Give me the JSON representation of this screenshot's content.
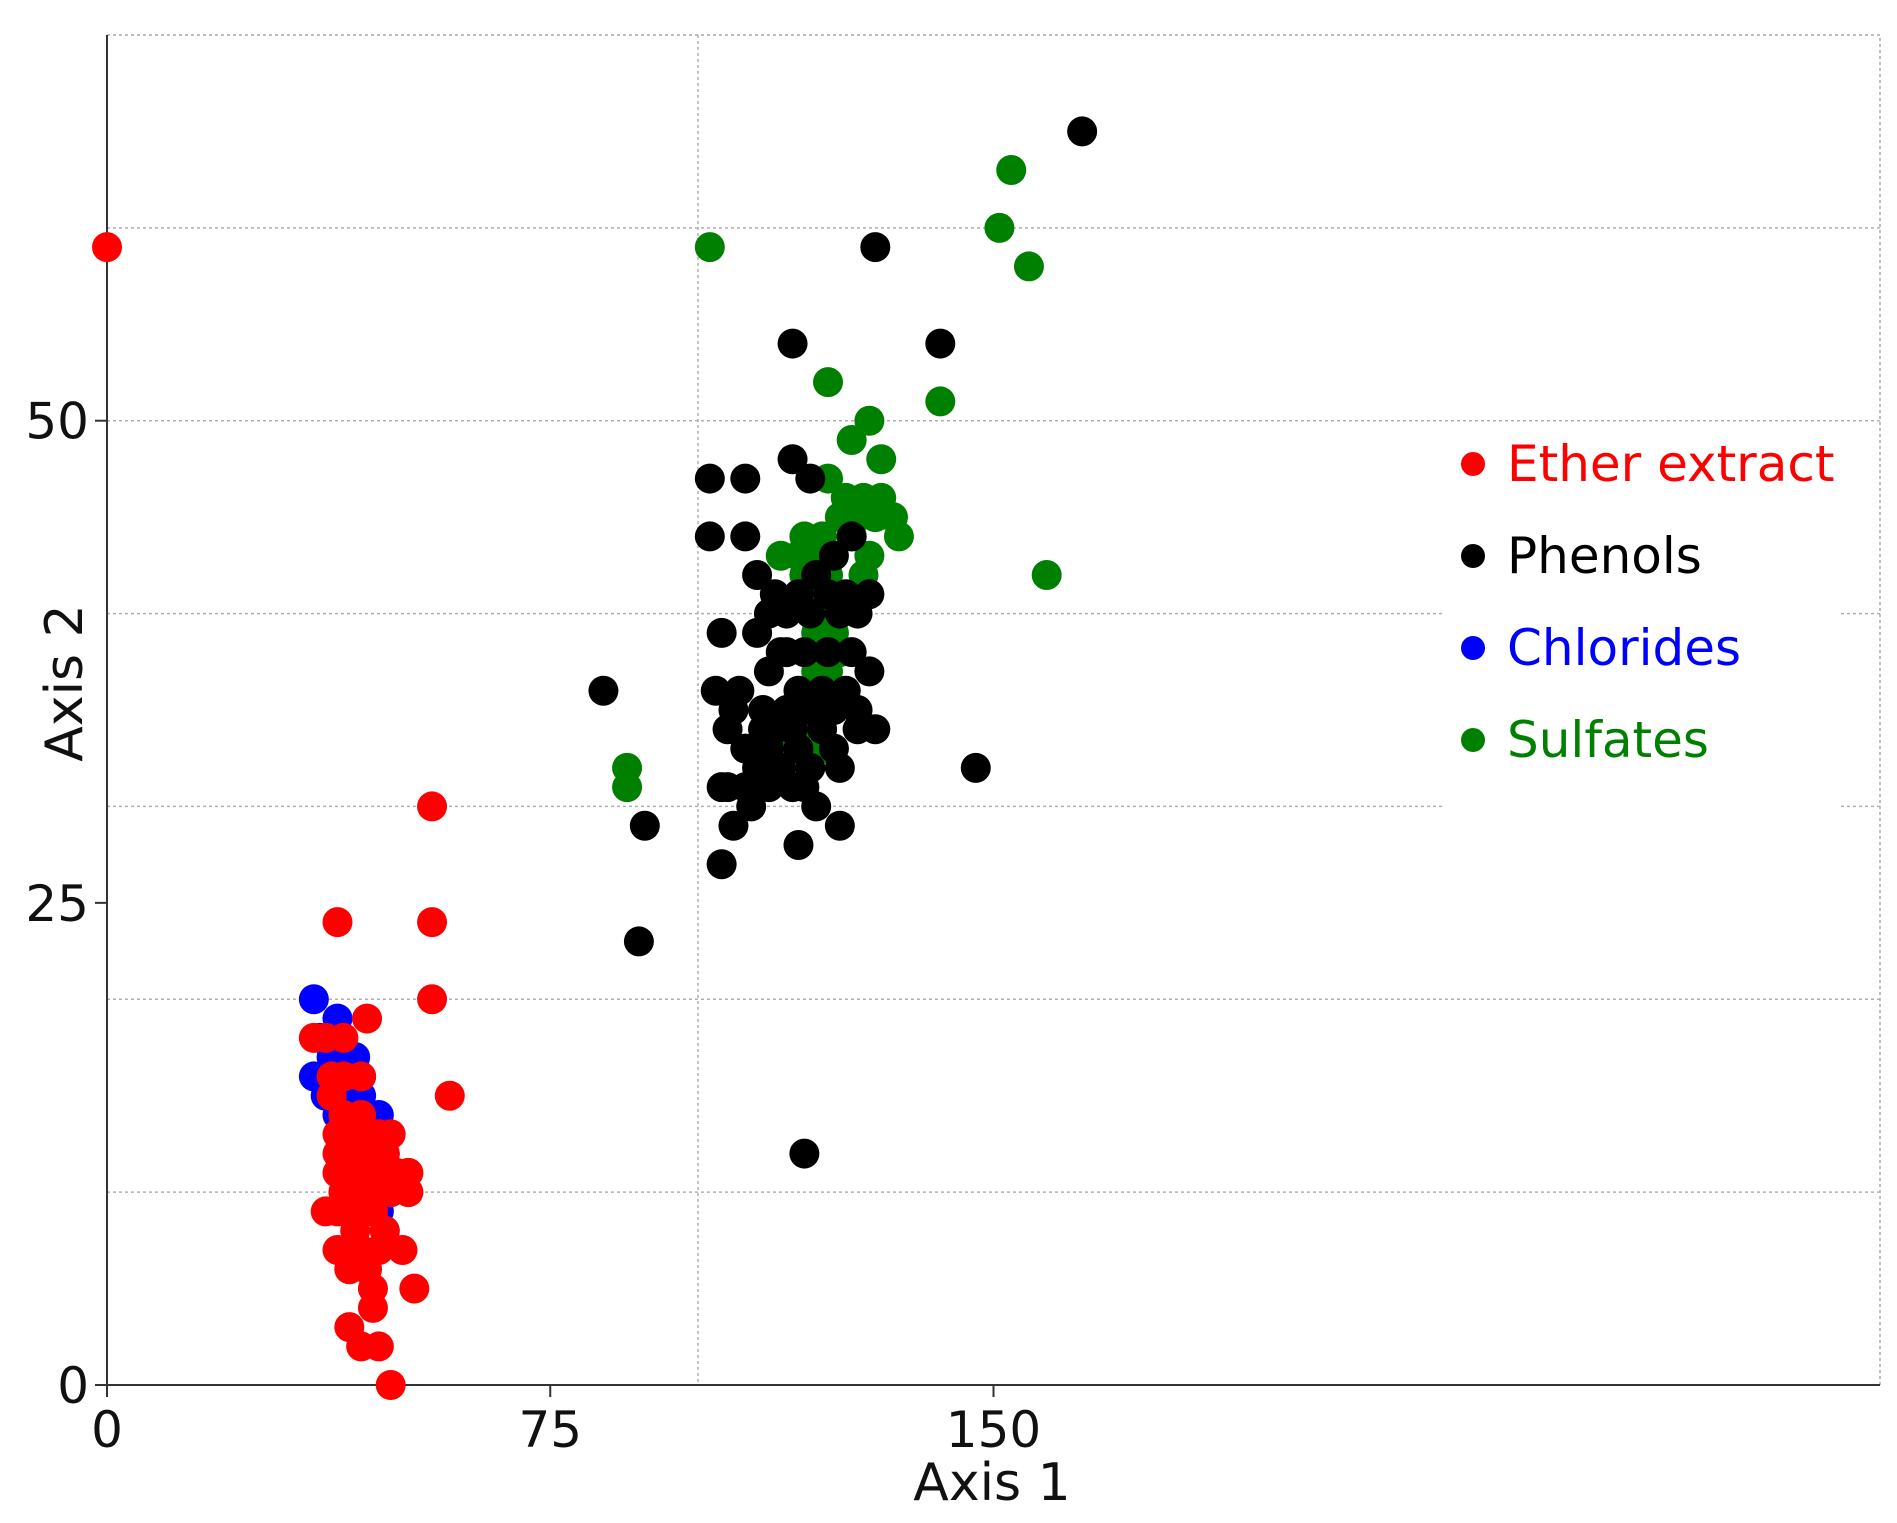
{
  "chart_data": {
    "type": "scatter",
    "title": "",
    "xlabel": "Axis 1",
    "ylabel": "Axis 2",
    "xlim": [
      0,
      300
    ],
    "ylim": [
      0,
      70
    ],
    "x_ticks": [
      0,
      75,
      150
    ],
    "y_ticks": [
      0,
      25,
      50
    ],
    "x_tick_labels": [
      "0",
      "75",
      "150"
    ],
    "y_tick_labels": [
      "0",
      "25",
      "50"
    ],
    "grid": true,
    "legend_position": "right",
    "series": [
      {
        "name": "Ether extract",
        "color": "#ff0000",
        "points": [
          [
            0,
            59
          ],
          [
            39,
            24
          ],
          [
            55,
            30
          ],
          [
            55,
            24
          ],
          [
            55,
            20
          ],
          [
            58,
            15
          ],
          [
            35,
            18
          ],
          [
            37,
            18
          ],
          [
            40,
            18
          ],
          [
            44,
            19
          ],
          [
            38,
            16
          ],
          [
            40,
            16
          ],
          [
            43,
            16
          ],
          [
            38,
            15
          ],
          [
            40,
            14
          ],
          [
            43,
            14
          ],
          [
            39,
            13
          ],
          [
            41,
            13
          ],
          [
            44,
            13
          ],
          [
            46,
            13
          ],
          [
            48,
            13
          ],
          [
            39,
            12
          ],
          [
            42,
            12
          ],
          [
            45,
            12
          ],
          [
            47,
            12
          ],
          [
            39,
            11
          ],
          [
            41,
            11
          ],
          [
            44,
            11
          ],
          [
            46,
            11
          ],
          [
            49,
            11
          ],
          [
            51,
            11
          ],
          [
            40,
            10
          ],
          [
            43,
            10
          ],
          [
            45,
            10
          ],
          [
            48,
            10
          ],
          [
            51,
            10
          ],
          [
            37,
            9
          ],
          [
            39,
            9
          ],
          [
            42,
            9
          ],
          [
            45,
            9
          ],
          [
            47,
            8
          ],
          [
            42,
            8
          ],
          [
            39,
            7
          ],
          [
            43,
            7
          ],
          [
            46,
            7
          ],
          [
            50,
            7
          ],
          [
            41,
            6
          ],
          [
            44,
            6
          ],
          [
            45,
            5
          ],
          [
            52,
            5
          ],
          [
            45,
            4
          ],
          [
            41,
            3
          ],
          [
            43,
            2
          ],
          [
            46,
            2
          ],
          [
            48,
            0
          ]
        ]
      },
      {
        "name": "Phenols",
        "color": "#000000",
        "points": [
          [
            165,
            65
          ],
          [
            130,
            59
          ],
          [
            116,
            54
          ],
          [
            141,
            54
          ],
          [
            116,
            48
          ],
          [
            119,
            47
          ],
          [
            102,
            47
          ],
          [
            108,
            47
          ],
          [
            102,
            44
          ],
          [
            108,
            44
          ],
          [
            126,
            44
          ],
          [
            123,
            43
          ],
          [
            120,
            42
          ],
          [
            110,
            42
          ],
          [
            113,
            41
          ],
          [
            117,
            41
          ],
          [
            122,
            41
          ],
          [
            125,
            41
          ],
          [
            129,
            41
          ],
          [
            112,
            40
          ],
          [
            115,
            40
          ],
          [
            119,
            40
          ],
          [
            124,
            40
          ],
          [
            127,
            40
          ],
          [
            104,
            39
          ],
          [
            110,
            39
          ],
          [
            114,
            38
          ],
          [
            118,
            38
          ],
          [
            122,
            38
          ],
          [
            126,
            38
          ],
          [
            129,
            37
          ],
          [
            112,
            37
          ],
          [
            117,
            36
          ],
          [
            121,
            36
          ],
          [
            125,
            36
          ],
          [
            107,
            36
          ],
          [
            106,
            35
          ],
          [
            111,
            35
          ],
          [
            115,
            35
          ],
          [
            119,
            35
          ],
          [
            123,
            35
          ],
          [
            127,
            35
          ],
          [
            84,
            36
          ],
          [
            103,
            36
          ],
          [
            111,
            34
          ],
          [
            116,
            34
          ],
          [
            121,
            34
          ],
          [
            112,
            33
          ],
          [
            108,
            33
          ],
          [
            117,
            33
          ],
          [
            123,
            33
          ],
          [
            105,
            34
          ],
          [
            113,
            34
          ],
          [
            127,
            34
          ],
          [
            130,
            34
          ],
          [
            110,
            32
          ],
          [
            114,
            32
          ],
          [
            119,
            32
          ],
          [
            124,
            32
          ],
          [
            118,
            31
          ],
          [
            147,
            32
          ],
          [
            104,
            31
          ],
          [
            108,
            31
          ],
          [
            112,
            31
          ],
          [
            116,
            31
          ],
          [
            106,
            29
          ],
          [
            91,
            29
          ],
          [
            124,
            29
          ],
          [
            104,
            27
          ],
          [
            117,
            28
          ],
          [
            90,
            23
          ],
          [
            118,
            12
          ],
          [
            105,
            31
          ],
          [
            109,
            30
          ],
          [
            120,
            30
          ],
          [
            115,
            38
          ]
        ]
      },
      {
        "name": "Chlorides",
        "color": "#0000ff",
        "points": [
          [
            35,
            20
          ],
          [
            39,
            19
          ],
          [
            36,
            18
          ],
          [
            38,
            17
          ],
          [
            40,
            17
          ],
          [
            42,
            17
          ],
          [
            35,
            16
          ],
          [
            37,
            16
          ],
          [
            39,
            16
          ],
          [
            41,
            16
          ],
          [
            43,
            16
          ],
          [
            37,
            15
          ],
          [
            41,
            15
          ],
          [
            43,
            15
          ],
          [
            46,
            14
          ],
          [
            39,
            14
          ],
          [
            44,
            14
          ],
          [
            42,
            13
          ],
          [
            47,
            12
          ],
          [
            45,
            11
          ],
          [
            48,
            10
          ],
          [
            46,
            9
          ],
          [
            47,
            8
          ]
        ]
      },
      {
        "name": "Sulfates",
        "color": "#008000",
        "points": [
          [
            153,
            63
          ],
          [
            151,
            60
          ],
          [
            156,
            58
          ],
          [
            102,
            59
          ],
          [
            122,
            52
          ],
          [
            141,
            51
          ],
          [
            129,
            50
          ],
          [
            126,
            49
          ],
          [
            131,
            48
          ],
          [
            122,
            47
          ],
          [
            125,
            46
          ],
          [
            128,
            46
          ],
          [
            131,
            46
          ],
          [
            124,
            45
          ],
          [
            127,
            45
          ],
          [
            130,
            45
          ],
          [
            133,
            45
          ],
          [
            118,
            44
          ],
          [
            121,
            44
          ],
          [
            126,
            44
          ],
          [
            134,
            44
          ],
          [
            114,
            43
          ],
          [
            117,
            43
          ],
          [
            120,
            43
          ],
          [
            129,
            43
          ],
          [
            159,
            42
          ],
          [
            118,
            42
          ],
          [
            122,
            42
          ],
          [
            128,
            42
          ],
          [
            121,
            41
          ],
          [
            124,
            41
          ],
          [
            126,
            41
          ],
          [
            119,
            40
          ],
          [
            123,
            40
          ],
          [
            120,
            39
          ],
          [
            123,
            39
          ],
          [
            121,
            38
          ],
          [
            124,
            38
          ],
          [
            120,
            37
          ],
          [
            122,
            37
          ],
          [
            119,
            36
          ],
          [
            116,
            35
          ],
          [
            117,
            34
          ],
          [
            88,
            32
          ],
          [
            88,
            31
          ],
          [
            112,
            34
          ],
          [
            113,
            32
          ],
          [
            118,
            32
          ],
          [
            115,
            33
          ],
          [
            121,
            33
          ]
        ]
      }
    ]
  }
}
